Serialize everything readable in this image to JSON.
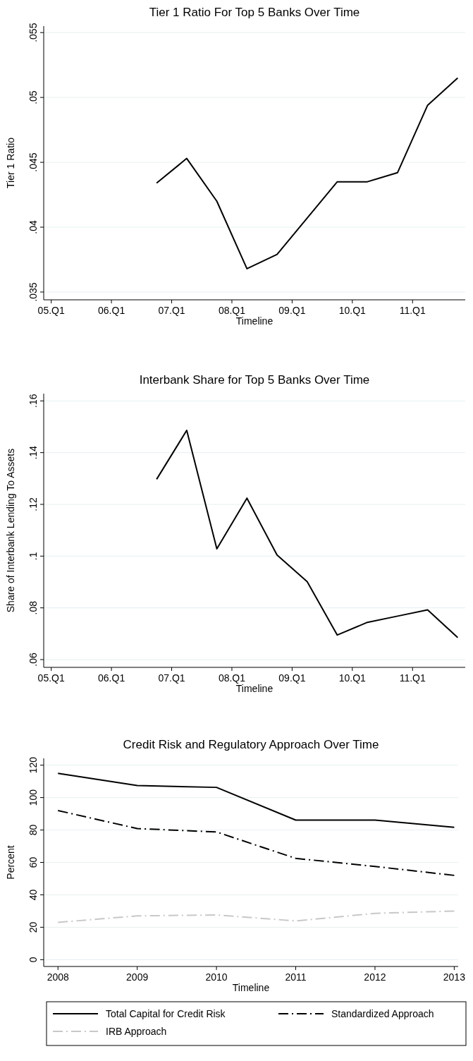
{
  "chart_data": [
    {
      "type": "line",
      "title": "Tier 1 Ratio For Top 5 Banks Over Time",
      "xlabel": "Timeline",
      "ylabel": "Tier 1 Ratio",
      "categories": [
        "05.Q1",
        null,
        null,
        null,
        "06.Q1",
        null,
        null,
        null,
        "07.Q1",
        null,
        null,
        null,
        "08.Q1",
        null,
        null,
        null,
        "09.Q1",
        null,
        null,
        null,
        "10.Q1",
        null,
        null,
        null,
        "11.Q1",
        null,
        null,
        null
      ],
      "series": [
        {
          "color": "#000000",
          "values": [
            null,
            null,
            null,
            null,
            null,
            null,
            null,
            0.0434,
            null,
            0.0453,
            null,
            0.042,
            null,
            0.0368,
            null,
            0.0379,
            null,
            0.0407,
            null,
            0.0435,
            null,
            0.0435,
            null,
            0.0442,
            null,
            0.0494,
            null,
            0.0515
          ]
        }
      ],
      "ylim": [
        0.0344,
        0.0555
      ],
      "yticks": [
        {
          "value": 0.035,
          "label": ".035"
        },
        {
          "value": 0.04,
          "label": ".04"
        },
        {
          "value": 0.045,
          "label": ".045"
        },
        {
          "value": 0.05,
          "label": ".05"
        },
        {
          "value": 0.055,
          "label": ".055"
        }
      ],
      "grid": "y",
      "line_style": "solid",
      "marker": "none"
    },
    {
      "type": "line",
      "title": "Interbank Share for Top 5 Banks Over Time",
      "xlabel": "Timeline",
      "ylabel": "Share of Interbank Lending To Assets",
      "categories": [
        "05.Q1",
        null,
        null,
        null,
        "06.Q1",
        null,
        null,
        null,
        "07.Q1",
        null,
        null,
        null,
        "08.Q1",
        null,
        null,
        null,
        "09.Q1",
        null,
        null,
        null,
        "10.Q1",
        null,
        null,
        null,
        "11.Q1",
        null,
        null,
        null
      ],
      "series": [
        {
          "color": "#000000",
          "values": [
            null,
            null,
            null,
            null,
            null,
            null,
            null,
            0.1297,
            null,
            0.1486,
            null,
            0.1028,
            null,
            0.1224,
            null,
            0.1004,
            null,
            0.0901,
            null,
            0.0695,
            null,
            0.0744,
            null,
            0.0768,
            null,
            0.0792,
            null,
            0.0685
          ]
        }
      ],
      "ylim": [
        0.057,
        0.1628
      ],
      "yticks": [
        {
          "value": 0.06,
          "label": ".06"
        },
        {
          "value": 0.08,
          "label": ".08"
        },
        {
          "value": 0.1,
          "label": ".1"
        },
        {
          "value": 0.12,
          "label": ".12"
        },
        {
          "value": 0.14,
          "label": ".14"
        },
        {
          "value": 0.16,
          "label": ".16"
        }
      ],
      "grid": "y",
      "line_style": "solid",
      "marker": "none"
    },
    {
      "type": "line",
      "title": "Credit Risk and Regulatory Approach Over Time",
      "xlabel": "Timeline",
      "ylabel": "Percent",
      "x": [
        2008,
        2009,
        2010,
        2011,
        2012,
        2013
      ],
      "series": [
        {
          "name": "Total Capital for Credit Risk",
          "color": "#000000",
          "line_style": "solid",
          "values": [
            115,
            107.4,
            106.3,
            86.1,
            86.1,
            81.7
          ]
        },
        {
          "name": "Standardized Approach",
          "color": "#000000",
          "line_style": "dashed",
          "values": [
            92,
            80.9,
            78.8,
            62.5,
            57.5,
            52.0
          ]
        },
        {
          "name": "IRB Approach",
          "color": "#c8c8c8",
          "line_style": "dashed",
          "values": [
            23,
            27,
            27.6,
            23.9,
            28.6,
            30
          ]
        }
      ],
      "xlim": [
        2007.82,
        2013.05
      ],
      "ylim": [
        -4.2,
        124.2
      ],
      "xticks": [
        2008,
        2009,
        2010,
        2011,
        2012,
        2013
      ],
      "yticks": [
        0,
        20,
        40,
        60,
        80,
        100,
        120
      ],
      "grid": "y",
      "legend": "bottom",
      "marker": "none"
    }
  ]
}
